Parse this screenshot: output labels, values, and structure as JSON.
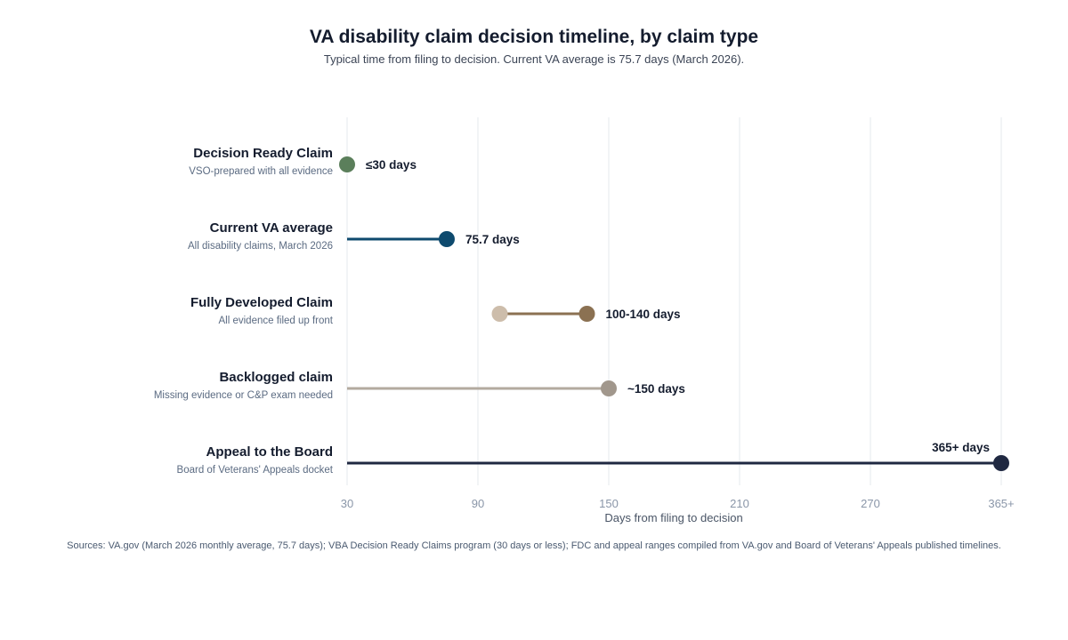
{
  "chart_data": {
    "type": "dumbbell",
    "title": "VA disability claim decision timeline, by claim type",
    "subtitle": "Typical time from filing to decision. Current VA average is 75.7 days (March 2026).",
    "xlabel": "Days from filing to decision",
    "xticks": [
      {
        "value": 30,
        "label": "30"
      },
      {
        "value": 90,
        "label": "90"
      },
      {
        "value": 150,
        "label": "150"
      },
      {
        "value": 210,
        "label": "210"
      },
      {
        "value": 270,
        "label": "270"
      },
      {
        "value": 365,
        "label": "365+"
      }
    ],
    "grid": true,
    "rows": [
      {
        "name": "Decision Ready Claim",
        "note": "VSO-prepared with all evidence",
        "start": 30,
        "end": 30,
        "label": "≤30 days",
        "line": null,
        "start_dot": null,
        "end_dot": "#5b7f5b"
      },
      {
        "name": "Current VA average",
        "note": "All disability claims, March 2026",
        "start": 30,
        "end": 75.7,
        "label": "75.7 days",
        "line": "#0e4a6e",
        "start_dot": null,
        "end_dot": "#0e4a6e"
      },
      {
        "name": "Fully Developed Claim",
        "note": "All evidence filed up front",
        "start": 100,
        "end": 140,
        "label": "100-140 days",
        "line": "#8b7152",
        "start_dot": "#cdbdab",
        "end_dot": "#8b7152"
      },
      {
        "name": "Backlogged claim",
        "note": "Missing evidence or C&P exam needed",
        "start": 30,
        "end": 150,
        "label": "~150 days",
        "line": "#b3aa9f",
        "start_dot": null,
        "end_dot": "#a1978c"
      },
      {
        "name": "Appeal to the Board",
        "note": "Board of Veterans' Appeals docket",
        "start": 30,
        "end": 365,
        "label": "365+ days",
        "line": "#1f2841",
        "start_dot": null,
        "end_dot": "#1f2841"
      }
    ]
  },
  "sources": "Sources: VA.gov (March 2026 monthly average, 75.7 days); VBA Decision Ready Claims program (30 days or less); FDC and appeal ranges compiled from VA.gov and Board of Veterans' Appeals published timelines."
}
